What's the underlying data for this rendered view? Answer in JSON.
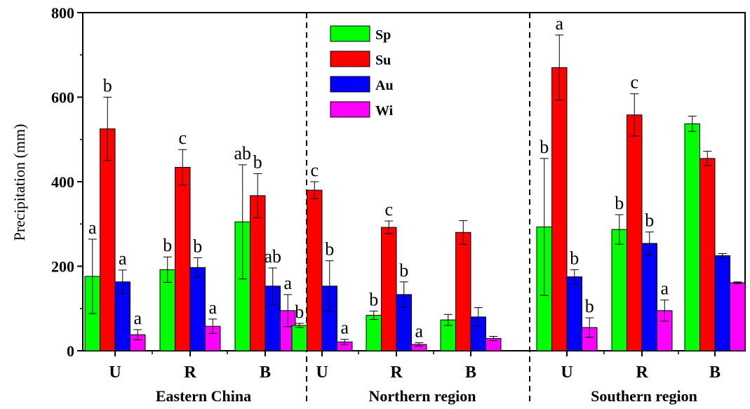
{
  "chart_data": {
    "type": "bar",
    "ylabel": "Precipitation (mm)",
    "ylim": [
      0,
      800
    ],
    "yticks": [
      "0",
      "200",
      "400",
      "600",
      "800"
    ],
    "legend_position": "top-center",
    "grid": false,
    "series": [
      {
        "name": "Sp",
        "color": "#00ff00"
      },
      {
        "name": "Su",
        "color": "#ff0000"
      },
      {
        "name": "Au",
        "color": "#0000ff"
      },
      {
        "name": "Wi",
        "color": "#ff00ff"
      }
    ],
    "groups": [
      {
        "region": "Eastern China",
        "category": "U",
        "values": [
          176,
          525,
          163,
          38
        ],
        "errors": [
          88,
          75,
          28,
          12
        ],
        "labels": [
          "a",
          "b",
          "a",
          "a"
        ]
      },
      {
        "region": "Eastern China",
        "category": "R",
        "values": [
          192,
          434,
          197,
          58
        ],
        "errors": [
          30,
          42,
          23,
          17
        ],
        "labels": [
          "b",
          "c",
          "b",
          "a"
        ]
      },
      {
        "region": "Eastern China",
        "category": "B",
        "values": [
          305,
          367,
          153,
          95
        ],
        "errors": [
          135,
          52,
          43,
          38
        ],
        "labels": [
          "ab",
          "b",
          "ab",
          "a"
        ]
      },
      {
        "region": "Northern region",
        "category": "U",
        "values": [
          60,
          380,
          153,
          21
        ],
        "errors": [
          5,
          20,
          60,
          6
        ],
        "labels": [
          "b",
          "c",
          "b",
          "a"
        ]
      },
      {
        "region": "Northern region",
        "category": "R",
        "values": [
          84,
          292,
          133,
          15
        ],
        "errors": [
          10,
          15,
          30,
          4
        ],
        "labels": [
          "b",
          "c",
          "b",
          "a"
        ]
      },
      {
        "region": "Northern region",
        "category": "B",
        "values": [
          73,
          280,
          80,
          29
        ],
        "errors": [
          13,
          28,
          22,
          5
        ],
        "labels": [
          "",
          "",
          "",
          ""
        ]
      },
      {
        "region": "Southern region",
        "category": "U",
        "values": [
          293,
          670,
          175,
          55
        ],
        "errors": [
          162,
          77,
          17,
          23
        ],
        "labels": [
          "b",
          "a",
          "b",
          "b"
        ]
      },
      {
        "region": "Southern region",
        "category": "R",
        "values": [
          287,
          558,
          254,
          95
        ],
        "errors": [
          35,
          50,
          27,
          25
        ],
        "labels": [
          "b",
          "c",
          "b",
          "a"
        ]
      },
      {
        "region": "Southern region",
        "category": "B",
        "values": [
          537,
          455,
          225,
          161
        ],
        "errors": [
          18,
          17,
          5,
          2
        ],
        "labels": [
          "",
          "",
          "",
          ""
        ]
      }
    ],
    "regions": [
      "Eastern China",
      "Northern region",
      "Southern region"
    ]
  }
}
